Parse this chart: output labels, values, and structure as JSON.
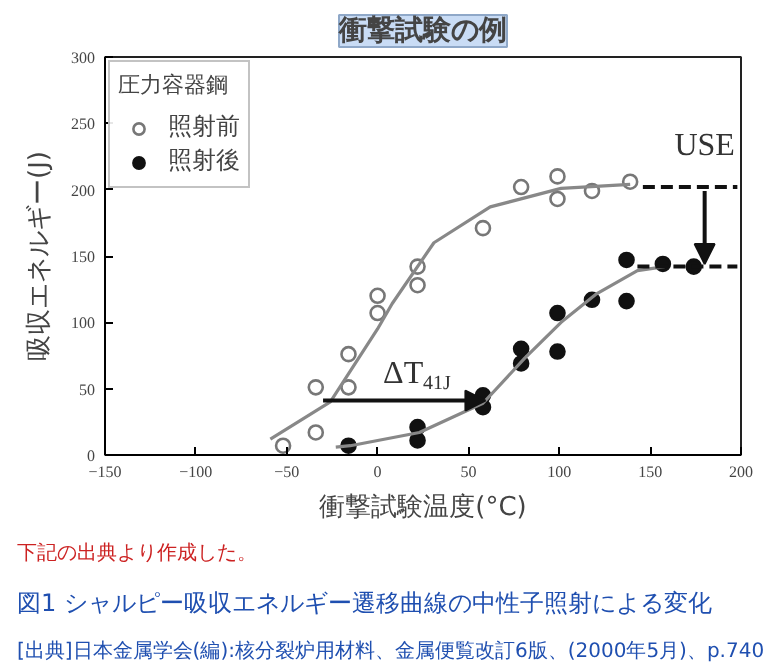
{
  "chart_data": {
    "type": "scatter",
    "title": "衝撃試験の例",
    "xlabel": "衝撃試験温度(°C)",
    "ylabel": "吸収エネルギー(J)",
    "legend_title": "圧力容器鋼",
    "xlim": [
      -150,
      200
    ],
    "ylim": [
      0,
      300
    ],
    "xticks": [
      -150,
      -100,
      -50,
      0,
      50,
      100,
      150,
      200
    ],
    "yticks": [
      0,
      50,
      100,
      150,
      200,
      250,
      300
    ],
    "grid": false,
    "legend": "top left",
    "series": [
      {
        "name": "照射前",
        "marker": "circle",
        "color": "#777777",
        "x": [
          -52,
          -34,
          -34,
          -16,
          -16,
          0,
          0,
          22,
          22,
          58,
          79,
          99,
          99,
          118,
          139
        ],
        "values": [
          7,
          17,
          51,
          51,
          76,
          120,
          107,
          142,
          128,
          171,
          202,
          210,
          193,
          199,
          206
        ]
      },
      {
        "name": "照射後",
        "marker": "circle",
        "color": "#111111",
        "x": [
          -16,
          22,
          22,
          58,
          58,
          79,
          79,
          99,
          99,
          118,
          137,
          137,
          157,
          174
        ],
        "values": [
          7,
          21,
          11,
          45,
          36,
          80,
          69,
          107,
          78,
          117,
          116,
          147,
          144,
          142
        ]
      },
      {
        "type": "line",
        "line_style": "solid",
        "color": "#888888",
        "x": [
          -59,
          -26,
          0,
          8,
          31,
          62,
          101,
          139
        ],
        "values": [
          12,
          40,
          95,
          114,
          160,
          187,
          201,
          204
        ]
      },
      {
        "type": "line",
        "line_style": "solid",
        "color": "#888888",
        "x": [
          -23,
          -15,
          23,
          58,
          81,
          101,
          120,
          143,
          158
        ],
        "values": [
          6,
          7,
          17,
          39,
          73,
          100,
          121,
          139,
          142
        ]
      },
      {
        "type": "line",
        "line_style": "dashed",
        "color": "#111111",
        "x": [
          146,
          198
        ],
        "values": [
          202,
          202
        ]
      },
      {
        "type": "line",
        "line_style": "dashed",
        "color": "#111111",
        "x": [
          143,
          198
        ],
        "values": [
          142,
          142
        ]
      }
    ],
    "annotations": [
      {
        "text": "USE",
        "x": 180,
        "y": 202
      },
      {
        "text": "ΔT$_{41J}$",
        "x": -30,
        "y": 41
      },
      "下記の出典より作成した。",
      "図1 シャルピー吸収エネルギー遷移曲線の中性子照射による変化",
      "[出典]日本金属学会(編):核分裂炉用材料、金属便覧改訂6版、(2000年5月)、p.740"
    ]
  }
}
